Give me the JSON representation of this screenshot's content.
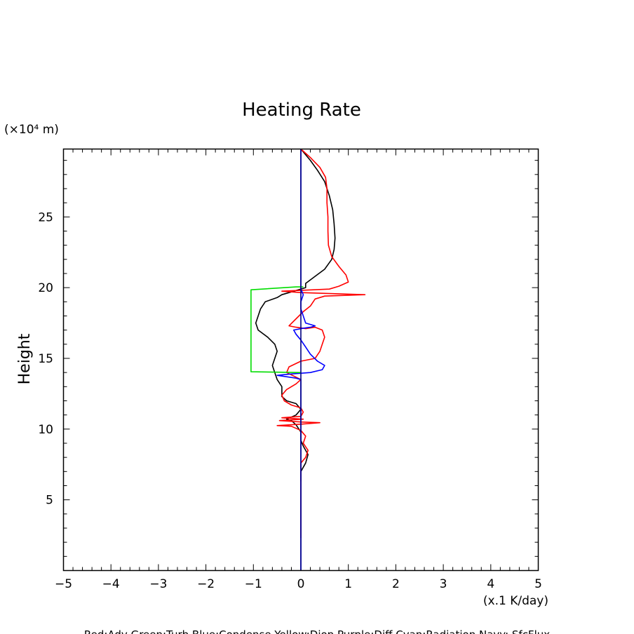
{
  "chart_data": {
    "type": "line",
    "title": "Heating Rate",
    "ylabel": "Height",
    "y_unit": "(×10⁴ m)",
    "x_unit": "(x.1 K/day)",
    "xlim": [
      -5,
      5
    ],
    "ylim": [
      0,
      29.8
    ],
    "x_ticks": [
      "−5",
      "−4",
      "−3",
      "−2",
      "−1",
      "0",
      "1",
      "2",
      "3",
      "4",
      "5"
    ],
    "y_ticks": [
      "5",
      "10",
      "15",
      "20",
      "25"
    ],
    "legend_text": "Red:Adv  Green:Turb  Blue:Condense  Yellow:Diop  Purple:Diff  Cyan:Radiation  Navy: SfcFlux",
    "grid": false,
    "series": [
      {
        "color": "#000000",
        "points": [
          [
            0,
            6.3
          ],
          [
            0.0,
            7.0
          ],
          [
            0.1,
            7.6
          ],
          [
            0.15,
            8.2
          ],
          [
            0.05,
            8.8
          ],
          [
            0.0,
            9.2
          ],
          [
            0.0,
            9.8
          ],
          [
            -0.1,
            10.3
          ],
          [
            -0.2,
            10.6
          ],
          [
            -0.3,
            10.7
          ],
          [
            -0.1,
            11.0
          ],
          [
            0.0,
            11.4
          ],
          [
            -0.1,
            11.8
          ],
          [
            -0.3,
            12.0
          ],
          [
            -0.4,
            12.3
          ],
          [
            -0.4,
            13.0
          ],
          [
            -0.5,
            13.5
          ],
          [
            -0.55,
            14.0
          ],
          [
            -0.6,
            14.5
          ],
          [
            -0.55,
            15.0
          ],
          [
            -0.5,
            15.5
          ],
          [
            -0.55,
            16.0
          ],
          [
            -0.7,
            16.5
          ],
          [
            -0.9,
            17.0
          ],
          [
            -0.95,
            17.5
          ],
          [
            -0.9,
            18.0
          ],
          [
            -0.85,
            18.5
          ],
          [
            -0.75,
            19.0
          ],
          [
            -0.5,
            19.3
          ],
          [
            -0.4,
            19.5
          ],
          [
            -0.2,
            19.7
          ],
          [
            0.1,
            20.0
          ],
          [
            0.1,
            20.3
          ],
          [
            0.3,
            20.8
          ],
          [
            0.5,
            21.3
          ],
          [
            0.65,
            22.0
          ],
          [
            0.7,
            22.7
          ],
          [
            0.72,
            23.5
          ],
          [
            0.7,
            24.5
          ],
          [
            0.67,
            25.5
          ],
          [
            0.6,
            26.5
          ],
          [
            0.5,
            27.5
          ],
          [
            0.35,
            28.3
          ],
          [
            0.2,
            29.0
          ],
          [
            0.0,
            29.8
          ]
        ]
      },
      {
        "color": "#ff0000",
        "points": [
          [
            0,
            2.3
          ],
          [
            0,
            3.5
          ],
          [
            0,
            7.0
          ],
          [
            0.0,
            7.6
          ],
          [
            0.1,
            8.0
          ],
          [
            0.15,
            8.5
          ],
          [
            0.05,
            9.0
          ],
          [
            0.1,
            9.5
          ],
          [
            0.0,
            9.9
          ],
          [
            -0.2,
            10.2
          ],
          [
            -0.5,
            10.25
          ],
          [
            0.0,
            10.35
          ],
          [
            0.4,
            10.45
          ],
          [
            0.0,
            10.5
          ],
          [
            -0.45,
            10.6
          ],
          [
            0.05,
            10.7
          ],
          [
            -0.4,
            10.8
          ],
          [
            0.0,
            10.9
          ],
          [
            0.05,
            11.2
          ],
          [
            0.0,
            11.5
          ],
          [
            -0.2,
            11.7
          ],
          [
            -0.35,
            12.0
          ],
          [
            -0.4,
            12.4
          ],
          [
            -0.3,
            12.8
          ],
          [
            -0.1,
            13.2
          ],
          [
            0.0,
            13.5
          ],
          [
            -0.3,
            14.0
          ],
          [
            -0.25,
            14.4
          ],
          [
            0.0,
            14.8
          ],
          [
            0.3,
            15.0
          ],
          [
            0.4,
            15.5
          ],
          [
            0.45,
            16.0
          ],
          [
            0.5,
            16.5
          ],
          [
            0.45,
            17.0
          ],
          [
            0.3,
            17.2
          ],
          [
            0.1,
            17.1
          ],
          [
            -0.1,
            17.2
          ],
          [
            -0.25,
            17.3
          ],
          [
            -0.1,
            17.8
          ],
          [
            0.05,
            18.3
          ],
          [
            0.2,
            18.7
          ],
          [
            0.3,
            19.2
          ],
          [
            0.5,
            19.4
          ],
          [
            1.35,
            19.5
          ],
          [
            0.0,
            19.65
          ],
          [
            -0.4,
            19.75
          ],
          [
            0.6,
            19.9
          ],
          [
            0.8,
            20.1
          ],
          [
            1.0,
            20.4
          ],
          [
            0.95,
            20.9
          ],
          [
            0.8,
            21.5
          ],
          [
            0.65,
            22.2
          ],
          [
            0.58,
            23.0
          ],
          [
            0.57,
            24.0
          ],
          [
            0.57,
            25.0
          ],
          [
            0.55,
            26.0
          ],
          [
            0.55,
            27.0
          ],
          [
            0.52,
            27.8
          ],
          [
            0.4,
            28.5
          ],
          [
            0.2,
            29.2
          ],
          [
            0.0,
            29.8
          ]
        ]
      },
      {
        "color": "#0000ff",
        "points": [
          [
            0,
            0.0
          ],
          [
            0,
            13.5
          ],
          [
            -0.1,
            13.6
          ],
          [
            -0.3,
            13.7
          ],
          [
            -0.5,
            13.8
          ],
          [
            -0.2,
            13.9
          ],
          [
            0.2,
            14.0
          ],
          [
            0.45,
            14.2
          ],
          [
            0.5,
            14.5
          ],
          [
            0.35,
            14.8
          ],
          [
            0.2,
            15.3
          ],
          [
            0.1,
            15.8
          ],
          [
            0.0,
            16.3
          ],
          [
            -0.1,
            16.7
          ],
          [
            -0.15,
            17.0
          ],
          [
            0.0,
            17.1
          ],
          [
            0.2,
            17.2
          ],
          [
            0.3,
            17.3
          ],
          [
            0.1,
            17.5
          ],
          [
            0.05,
            18.0
          ],
          [
            0.0,
            18.5
          ],
          [
            0.0,
            19.0
          ],
          [
            0.05,
            19.5
          ],
          [
            0.0,
            19.9
          ],
          [
            0.0,
            29.8
          ]
        ]
      },
      {
        "color": "#00dd00",
        "points": [
          [
            0,
            14.0
          ],
          [
            -1.05,
            14.05
          ],
          [
            -1.05,
            19.85
          ],
          [
            -0.1,
            20.05
          ],
          [
            0.05,
            20.05
          ]
        ]
      },
      {
        "color": "#000080",
        "points": [
          [
            0,
            0.0
          ],
          [
            0,
            29.8
          ]
        ]
      }
    ]
  }
}
